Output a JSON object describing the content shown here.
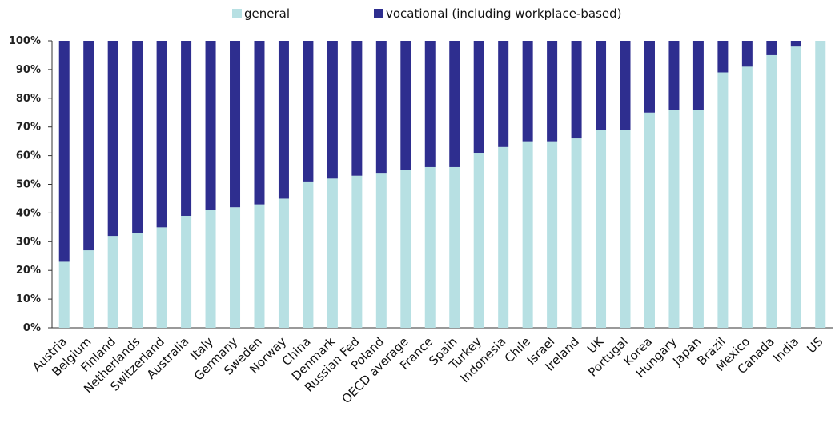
{
  "chart_data": {
    "type": "bar",
    "stacked": true,
    "title": "",
    "xlabel": "",
    "ylabel": "",
    "ylim": [
      0,
      100
    ],
    "y_ticks": [
      "0%",
      "10%",
      "20%",
      "30%",
      "40%",
      "50%",
      "60%",
      "70%",
      "80%",
      "90%",
      "100%"
    ],
    "legend_position": "top",
    "grid": false,
    "categories": [
      "Austria",
      "Belgium",
      "Finland",
      "Netherlands",
      "Switzerland",
      "Australia",
      "Italy",
      "Germany",
      "Sweden",
      "Norway",
      "China",
      "Denmark",
      "Russian Fed",
      "Poland",
      "OECD average",
      "France",
      "Spain",
      "Turkey",
      "Indonesia",
      "Chile",
      "Israel",
      "Ireland",
      "UK",
      "Portugal",
      "Korea",
      "Hungary",
      "Japan",
      "Brazil",
      "Mexico",
      "Canada",
      "India",
      "US"
    ],
    "series": [
      {
        "name": "general",
        "color": "#b7e0e3",
        "values": [
          23,
          27,
          32,
          33,
          35,
          39,
          41,
          42,
          43,
          45,
          51,
          52,
          53,
          54,
          55,
          56,
          56,
          61,
          63,
          65,
          65,
          66,
          69,
          69,
          75,
          76,
          76,
          89,
          91,
          95,
          98,
          100
        ]
      },
      {
        "name": "vocational (including workplace-based)",
        "color": "#2e2e8f",
        "values": [
          77,
          73,
          68,
          67,
          65,
          61,
          59,
          58,
          57,
          55,
          49,
          48,
          47,
          46,
          45,
          44,
          44,
          39,
          37,
          35,
          35,
          34,
          31,
          31,
          25,
          24,
          24,
          11,
          9,
          5,
          2,
          0
        ]
      }
    ]
  }
}
